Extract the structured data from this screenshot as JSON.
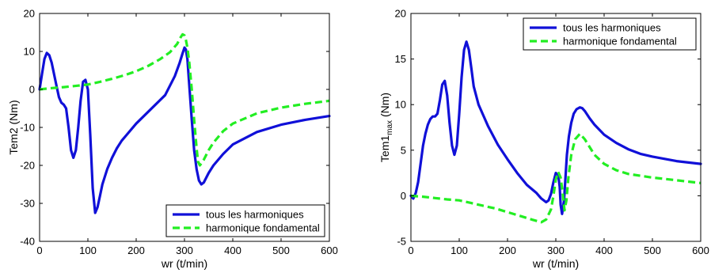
{
  "colors": {
    "all_harmonics": "#1010d8",
    "fundamental": "#22ee22",
    "axes": "#000000",
    "background": "#ffffff"
  },
  "chart_data": [
    {
      "type": "line",
      "xlabel": "wr (t/min)",
      "ylabel": "Tem2 (Nm)",
      "ylabel_sub": "",
      "ylabel_after": "",
      "xlim": [
        0,
        600
      ],
      "ylim": [
        -40,
        20
      ],
      "xticks": [
        0,
        100,
        200,
        300,
        400,
        500,
        600
      ],
      "yticks": [
        -40,
        -30,
        -20,
        -10,
        0,
        10,
        20
      ],
      "legend_position": "bottom-right",
      "grid": false,
      "series": [
        {
          "name": "tous les harmoniques",
          "color": "#1010d8",
          "style": "solid",
          "x": [
            0,
            5,
            10,
            15,
            20,
            25,
            30,
            35,
            40,
            45,
            50,
            55,
            60,
            65,
            70,
            75,
            80,
            85,
            90,
            95,
            100,
            105,
            110,
            115,
            120,
            125,
            130,
            140,
            150,
            160,
            170,
            180,
            200,
            220,
            240,
            260,
            280,
            290,
            296,
            300,
            303,
            306,
            310,
            315,
            320,
            325,
            330,
            335,
            340,
            350,
            360,
            380,
            400,
            450,
            500,
            550,
            600
          ],
          "y": [
            0,
            4,
            8,
            9.6,
            9.0,
            7.0,
            4.0,
            1.0,
            -2.0,
            -3.5,
            -4.0,
            -5.0,
            -10,
            -16,
            -18,
            -16,
            -10,
            -3,
            2,
            2.5,
            0,
            -12,
            -26,
            -32.5,
            -31,
            -28,
            -25,
            -21,
            -18,
            -15.5,
            -13.5,
            -12,
            -9,
            -6.5,
            -4,
            -1.5,
            3.5,
            7,
            9.5,
            11,
            10.5,
            8,
            1,
            -8,
            -16,
            -21,
            -24,
            -25,
            -24.5,
            -22,
            -20,
            -17,
            -14.5,
            -11.2,
            -9.3,
            -8,
            -7
          ]
        },
        {
          "name": "harmonique fondamental",
          "color": "#22ee22",
          "style": "dashed",
          "x": [
            0,
            20,
            50,
            80,
            100,
            125,
            150,
            175,
            200,
            225,
            250,
            270,
            285,
            292,
            296,
            300,
            303,
            306,
            310,
            315,
            320,
            325,
            328,
            332,
            340,
            350,
            360,
            380,
            400,
            450,
            500,
            550,
            600
          ],
          "y": [
            0,
            0.3,
            0.6,
            1.0,
            1.3,
            2.0,
            2.8,
            3.7,
            4.8,
            6.2,
            8.0,
            9.8,
            12.0,
            13.7,
            14.5,
            14.2,
            13,
            11,
            7,
            0,
            -8,
            -15.5,
            -19,
            -20,
            -18.5,
            -16,
            -14,
            -11,
            -9,
            -6.3,
            -4.8,
            -3.8,
            -3.0
          ]
        }
      ]
    },
    {
      "type": "line",
      "xlabel": "wr (t/min)",
      "ylabel": "Tem1",
      "ylabel_sub": "max",
      "ylabel_after": " (Nm)",
      "xlim": [
        0,
        600
      ],
      "ylim": [
        -5,
        20
      ],
      "xticks": [
        0,
        100,
        200,
        300,
        400,
        500,
        600
      ],
      "yticks": [
        -5,
        0,
        5,
        10,
        15,
        20
      ],
      "legend_position": "top-right",
      "grid": false,
      "series": [
        {
          "name": "tous les harmoniques",
          "color": "#1010d8",
          "style": "solid",
          "x": [
            0,
            5,
            10,
            15,
            20,
            25,
            30,
            35,
            40,
            45,
            50,
            55,
            60,
            65,
            70,
            75,
            80,
            85,
            90,
            95,
            100,
            105,
            110,
            115,
            120,
            125,
            130,
            140,
            150,
            160,
            180,
            200,
            220,
            240,
            260,
            270,
            280,
            285,
            290,
            295,
            300,
            305,
            308,
            310,
            313,
            317,
            320,
            323,
            327,
            332,
            337,
            343,
            350,
            355,
            360,
            370,
            380,
            400,
            425,
            450,
            475,
            500,
            550,
            600
          ],
          "y": [
            0,
            -0.3,
            0.3,
            1.5,
            3.5,
            5.5,
            6.8,
            7.8,
            8.4,
            8.7,
            8.7,
            9.0,
            10.5,
            12.2,
            12.6,
            11.0,
            8.0,
            5.5,
            4.5,
            5.5,
            9.0,
            13.0,
            16.0,
            16.9,
            16.0,
            14.0,
            12.0,
            10.0,
            8.8,
            7.6,
            5.6,
            4.0,
            2.5,
            1.2,
            0.3,
            -0.3,
            -0.7,
            -0.5,
            0.2,
            1.5,
            2.5,
            2.3,
            1.0,
            -1.0,
            -2.0,
            -0.5,
            2.0,
            4.5,
            6.5,
            8.0,
            9.0,
            9.5,
            9.7,
            9.6,
            9.3,
            8.5,
            7.8,
            6.7,
            5.8,
            5.1,
            4.6,
            4.3,
            3.8,
            3.5
          ]
        },
        {
          "name": "harmonique fondamental",
          "color": "#22ee22",
          "style": "dashed",
          "x": [
            0,
            25,
            50,
            75,
            100,
            125,
            150,
            175,
            200,
            225,
            250,
            270,
            280,
            290,
            295,
            300,
            305,
            310,
            315,
            318,
            322,
            326,
            332,
            340,
            350,
            360,
            380,
            400,
            425,
            450,
            500,
            550,
            600
          ],
          "y": [
            0,
            -0.1,
            -0.25,
            -0.4,
            -0.5,
            -0.8,
            -1.1,
            -1.4,
            -1.8,
            -2.2,
            -2.6,
            -2.9,
            -2.6,
            -1.5,
            0,
            1.8,
            2.6,
            2.0,
            0,
            -1.6,
            -0.5,
            2.0,
            4.5,
            6.2,
            6.8,
            6.2,
            4.5,
            3.5,
            2.8,
            2.4,
            2.0,
            1.7,
            1.4
          ]
        }
      ]
    }
  ]
}
